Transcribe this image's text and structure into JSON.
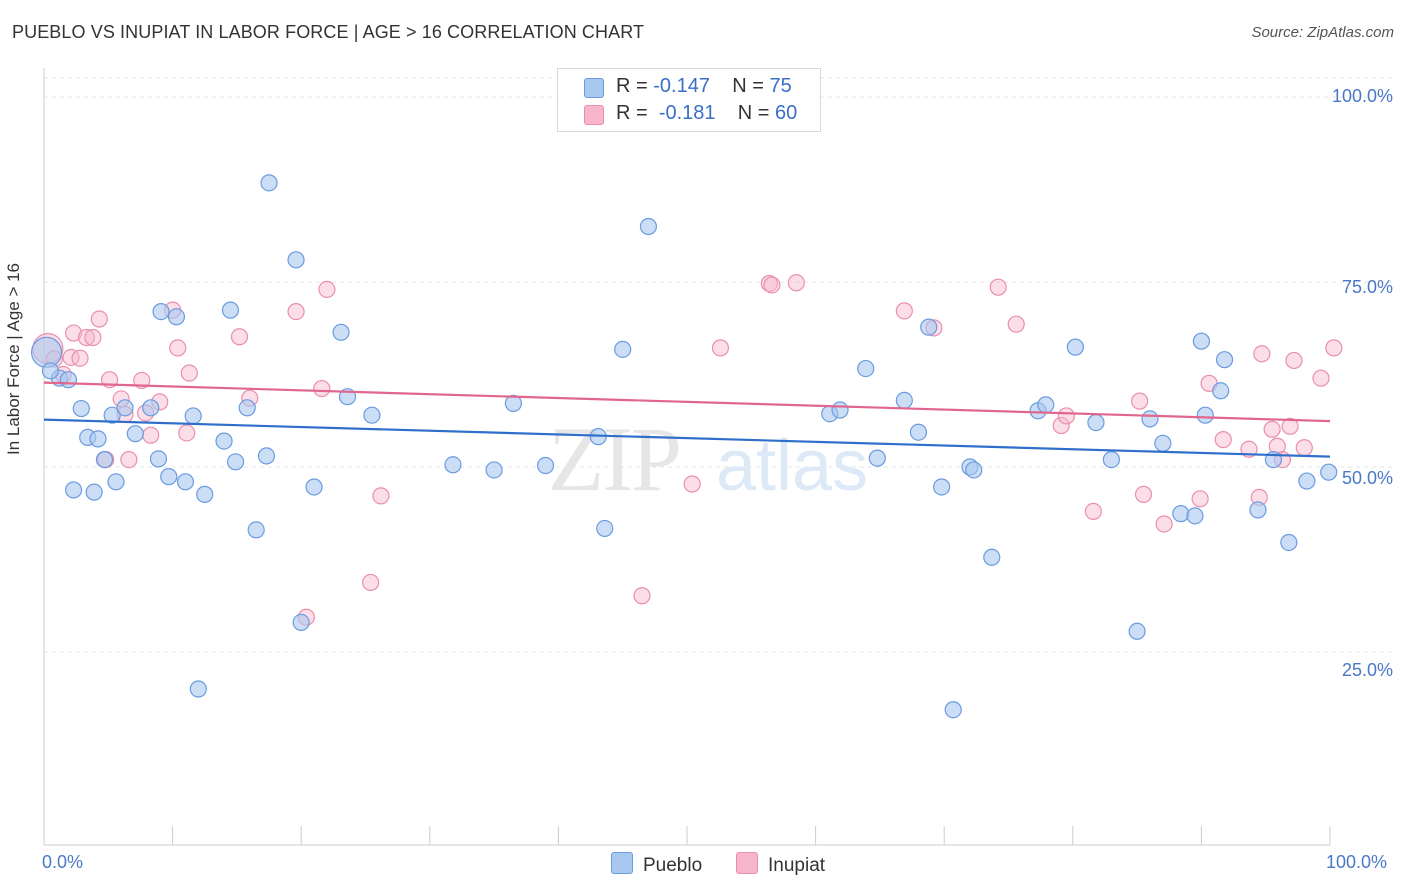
{
  "title": "PUEBLO VS INUPIAT IN LABOR FORCE | AGE > 16 CORRELATION CHART",
  "source": "Source: ZipAtlas.com",
  "watermark": {
    "zip": "ZIP",
    "atlas": "atlas"
  },
  "legend_top": [
    {
      "r_label": "R = ",
      "r_value": "-0.147",
      "n_label": "N = ",
      "n_value": "75",
      "color": "#a9c8f0"
    },
    {
      "r_label": "R = ",
      "r_value": "-0.181",
      "n_label": "N = ",
      "n_value": "60",
      "color": "#f7b6cb"
    }
  ],
  "chart_data": {
    "type": "scatter",
    "title": "PUEBLO VS INUPIAT IN LABOR FORCE | AGE > 16 CORRELATION CHART",
    "ylabel": "In Labor Force | Age > 16",
    "xlabel": "",
    "xlim": [
      0,
      100
    ],
    "ylim": [
      0,
      105
    ],
    "x_tick_labels": [
      "0.0%",
      "100.0%"
    ],
    "y_tick_labels": [
      "25.0%",
      "50.0%",
      "75.0%",
      "100.0%"
    ],
    "y_ticks": [
      25,
      50,
      75,
      100
    ],
    "grid": "horizontal dashed",
    "legend_position": "top-center and bottom",
    "series": [
      {
        "name": "Pueblo",
        "color": "#a9c8f0",
        "edge": "#6a9be0",
        "trend_color": "#2f6fcb",
        "trend": [
          [
            0,
            56.4
          ],
          [
            100,
            51.4
          ]
        ],
        "points": [
          [
            0.2,
            65.5
          ],
          [
            1.2,
            62
          ],
          [
            1.9,
            61.8
          ],
          [
            2.3,
            46.9
          ],
          [
            2.9,
            57.9
          ],
          [
            3.4,
            54
          ],
          [
            3.9,
            46.6
          ],
          [
            4.2,
            53.8
          ],
          [
            4.7,
            51
          ],
          [
            5.3,
            57
          ],
          [
            5.6,
            48
          ],
          [
            6.3,
            58
          ],
          [
            7.1,
            54.5
          ],
          [
            8.3,
            58
          ],
          [
            8.9,
            51.1
          ],
          [
            9.1,
            71
          ],
          [
            9.7,
            48.7
          ],
          [
            10.3,
            70.3
          ],
          [
            11,
            48
          ],
          [
            11.6,
            56.9
          ],
          [
            12,
            20
          ],
          [
            12.5,
            46.3
          ],
          [
            14,
            53.5
          ],
          [
            14.5,
            71.2
          ],
          [
            14.9,
            50.7
          ],
          [
            15.8,
            58
          ],
          [
            16.5,
            41.5
          ],
          [
            17.3,
            51.5
          ],
          [
            17.5,
            88.4
          ],
          [
            19.6,
            78
          ],
          [
            20,
            29
          ],
          [
            21,
            47.3
          ],
          [
            23.1,
            68.2
          ],
          [
            23.6,
            59.5
          ],
          [
            25.5,
            57
          ],
          [
            31.8,
            50.3
          ],
          [
            35,
            49.6
          ],
          [
            36.5,
            58.6
          ],
          [
            39,
            50.2
          ],
          [
            43.1,
            54.1
          ],
          [
            43.6,
            41.7
          ],
          [
            45,
            65.9
          ],
          [
            47,
            82.5
          ],
          [
            61.1,
            57.2
          ],
          [
            61.9,
            57.7
          ],
          [
            63.9,
            63.3
          ],
          [
            64.8,
            51.2
          ],
          [
            66.9,
            59
          ],
          [
            68,
            54.7
          ],
          [
            68.8,
            68.9
          ],
          [
            69.8,
            47.3
          ],
          [
            70.7,
            17.2
          ],
          [
            72,
            50
          ],
          [
            72.3,
            49.6
          ],
          [
            73.7,
            37.8
          ],
          [
            77.3,
            57.6
          ],
          [
            77.9,
            58.4
          ],
          [
            80.2,
            66.2
          ],
          [
            81.8,
            56
          ],
          [
            83,
            51
          ],
          [
            85,
            27.8
          ],
          [
            86,
            56.5
          ],
          [
            87,
            53.2
          ],
          [
            88.4,
            43.7
          ],
          [
            89.5,
            43.4
          ],
          [
            90,
            67
          ],
          [
            90.3,
            57
          ],
          [
            91.5,
            60.3
          ],
          [
            91.8,
            64.5
          ],
          [
            94.4,
            44.2
          ],
          [
            95.6,
            51
          ],
          [
            96.8,
            39.8
          ],
          [
            98.2,
            48.1
          ],
          [
            99.9,
            49.3
          ],
          [
            0.5,
            63
          ]
        ]
      },
      {
        "name": "Inupiat",
        "color": "#f7b6cb",
        "edge": "#ea8fac",
        "trend_color": "#e0668e",
        "trend": [
          [
            0,
            61.4
          ],
          [
            100,
            56.2
          ]
        ],
        "points": [
          [
            0.3,
            66
          ],
          [
            0.8,
            64.6
          ],
          [
            1.5,
            62.5
          ],
          [
            2.1,
            64.8
          ],
          [
            2.3,
            68.1
          ],
          [
            2.8,
            64.7
          ],
          [
            3.3,
            67.5
          ],
          [
            3.8,
            67.5
          ],
          [
            4.3,
            70
          ],
          [
            4.8,
            51
          ],
          [
            5.1,
            61.8
          ],
          [
            6,
            59.2
          ],
          [
            6.3,
            57.1
          ],
          [
            6.6,
            51
          ],
          [
            7.6,
            61.7
          ],
          [
            7.9,
            57.3
          ],
          [
            8.3,
            54.3
          ],
          [
            9,
            58.8
          ],
          [
            10,
            71.2
          ],
          [
            10.4,
            66.1
          ],
          [
            11.1,
            54.6
          ],
          [
            11.3,
            62.7
          ],
          [
            15.2,
            67.6
          ],
          [
            16,
            59.3
          ],
          [
            19.6,
            71
          ],
          [
            20.4,
            29.7
          ],
          [
            21.6,
            60.6
          ],
          [
            22,
            74
          ],
          [
            25.4,
            34.4
          ],
          [
            26.2,
            46.1
          ],
          [
            46.5,
            32.6
          ],
          [
            50.4,
            47.7
          ],
          [
            52.6,
            66.1
          ],
          [
            56.4,
            74.8
          ],
          [
            56.6,
            74.6
          ],
          [
            58.5,
            74.9
          ],
          [
            66.9,
            71.1
          ],
          [
            69.2,
            68.8
          ],
          [
            74.2,
            74.3
          ],
          [
            75.6,
            69.3
          ],
          [
            79.1,
            55.6
          ],
          [
            79.5,
            56.9
          ],
          [
            81.6,
            44
          ],
          [
            85.2,
            58.9
          ],
          [
            85.5,
            46.3
          ],
          [
            87.1,
            42.3
          ],
          [
            89.9,
            45.7
          ],
          [
            90.6,
            61.3
          ],
          [
            91.7,
            53.7
          ],
          [
            93.7,
            52.4
          ],
          [
            94.5,
            45.9
          ],
          [
            94.7,
            65.3
          ],
          [
            95.5,
            55.1
          ],
          [
            95.9,
            52.8
          ],
          [
            96.3,
            51
          ],
          [
            96.9,
            55.5
          ],
          [
            97.2,
            64.4
          ],
          [
            98,
            52.6
          ],
          [
            99.3,
            62
          ],
          [
            100.3,
            66.1
          ]
        ]
      }
    ]
  },
  "bottom_legend": [
    {
      "label": "Pueblo",
      "color": "#a9c8f0"
    },
    {
      "label": "Inupiat",
      "color": "#f7b6cb"
    }
  ]
}
